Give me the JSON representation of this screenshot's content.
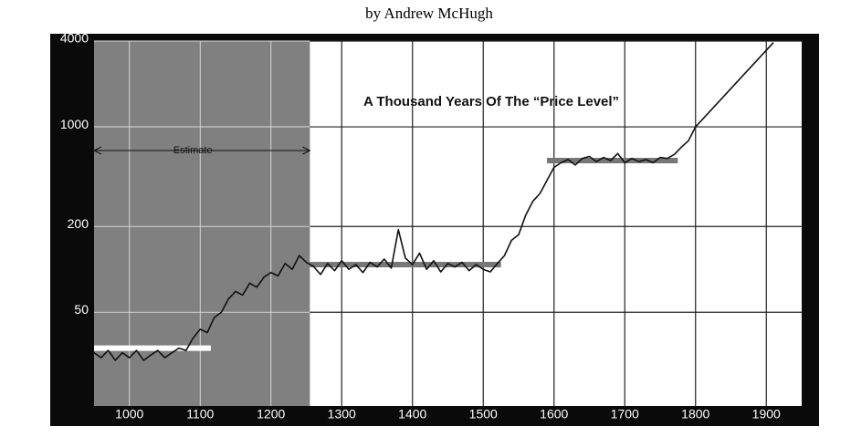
{
  "chart_data": {
    "type": "line",
    "title": "by Andrew McHugh",
    "annotation": "A Thousand Years Of The “Price Level”",
    "estimate_label": "Estimate",
    "estimate_range": [
      950,
      1255
    ],
    "log_y": true,
    "grid": true,
    "color": "#111111",
    "x": [
      950,
      960,
      970,
      980,
      990,
      1000,
      1010,
      1020,
      1030,
      1040,
      1050,
      1060,
      1070,
      1080,
      1090,
      1100,
      1110,
      1120,
      1130,
      1140,
      1150,
      1160,
      1170,
      1180,
      1190,
      1200,
      1210,
      1220,
      1230,
      1240,
      1250,
      1260,
      1270,
      1280,
      1290,
      1300,
      1310,
      1320,
      1330,
      1340,
      1350,
      1360,
      1370,
      1380,
      1390,
      1400,
      1410,
      1420,
      1430,
      1440,
      1450,
      1460,
      1470,
      1480,
      1490,
      1500,
      1510,
      1520,
      1530,
      1540,
      1550,
      1560,
      1570,
      1580,
      1590,
      1600,
      1610,
      1620,
      1630,
      1640,
      1650,
      1660,
      1670,
      1680,
      1690,
      1700,
      1710,
      1720,
      1730,
      1740,
      1750,
      1760,
      1770,
      1780,
      1790,
      1800,
      1910
    ],
    "values": [
      26,
      24,
      27,
      23,
      26,
      24,
      27,
      23,
      25,
      27,
      24,
      26,
      28,
      27,
      33,
      38,
      36,
      46,
      50,
      62,
      70,
      66,
      80,
      75,
      88,
      95,
      90,
      110,
      100,
      125,
      112,
      105,
      92,
      110,
      98,
      115,
      100,
      108,
      95,
      112,
      104,
      118,
      102,
      190,
      120,
      108,
      130,
      100,
      115,
      96,
      110,
      104,
      112,
      98,
      108,
      100,
      96,
      110,
      125,
      160,
      175,
      240,
      300,
      340,
      420,
      520,
      560,
      590,
      540,
      600,
      620,
      570,
      610,
      580,
      650,
      560,
      600,
      570,
      590,
      560,
      610,
      600,
      640,
      720,
      800,
      1000,
      3900
    ],
    "levels": [
      {
        "x": [
          950,
          1115
        ],
        "value": 28,
        "color": "#ffffff"
      },
      {
        "x": [
          1255,
          1525
        ],
        "value": 108,
        "color": "#777777"
      },
      {
        "x": [
          1590,
          1775
        ],
        "value": 580,
        "color": "#777777"
      }
    ],
    "xlim": [
      950,
      1950
    ],
    "ylim": [
      11,
      4000
    ],
    "xticks": [
      1000,
      1100,
      1200,
      1300,
      1400,
      1500,
      1600,
      1700,
      1800,
      1900
    ],
    "yticks": [
      50,
      200,
      1000,
      4000
    ]
  }
}
